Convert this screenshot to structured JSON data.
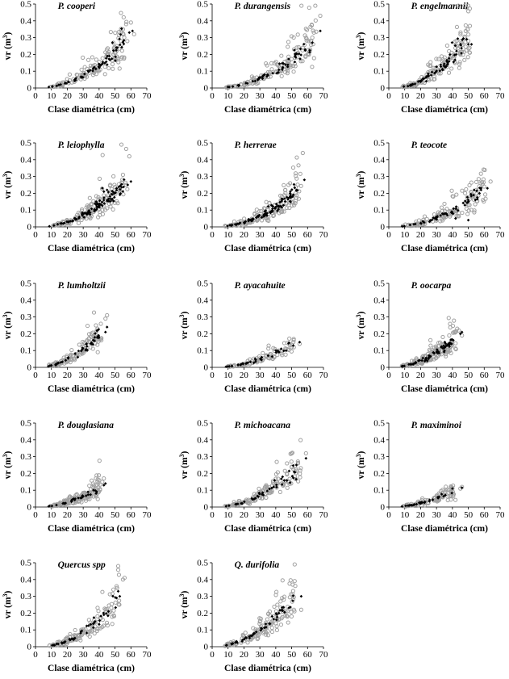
{
  "chart_data": {
    "type": "scatter",
    "xlabel": "Clase diamétrica (cm)",
    "ylabel": "vr (m3)",
    "ylabel_base": "vr (m",
    "ylabel_sup": "3",
    "ylabel_end": ")",
    "xlim": [
      0,
      70
    ],
    "ylim": [
      0,
      0.5
    ],
    "x_ticks": [
      0,
      10,
      20,
      30,
      40,
      50,
      60,
      70
    ],
    "y_ticks": [
      0,
      0.1,
      0.2,
      0.3,
      0.4,
      0.5
    ],
    "x_tick_labels": [
      "0",
      "10",
      "20",
      "30",
      "40",
      "50",
      "60",
      "70"
    ],
    "y_tick_labels": [
      "0",
      "0.1",
      "0.2",
      "0.3",
      "0.4",
      "0.5"
    ],
    "series_styles": {
      "observed": {
        "color": "#a0a0a0",
        "marker": "open-circle"
      },
      "predicted": {
        "color": "#000000",
        "marker": "diamond"
      }
    },
    "panels": [
      {
        "title": "P. cooperi",
        "xmin": 8,
        "xmax": 62,
        "a": 5.5e-05,
        "b": 2.12,
        "noise": 0.3,
        "n_obs": 130,
        "n_pred": 60,
        "extra_obs": [
          [
            60,
            0.39
          ],
          [
            57,
            0.38
          ],
          [
            55,
            0.35
          ],
          [
            62,
            0.32
          ]
        ],
        "extra_pred": [
          [
            61,
            0.34
          ],
          [
            59,
            0.33
          ]
        ]
      },
      {
        "title": "P. durangensis",
        "xmin": 8,
        "xmax": 70,
        "a": 3.8e-05,
        "b": 2.15,
        "noise": 0.3,
        "n_obs": 150,
        "n_pred": 55,
        "extra_obs": [
          [
            68,
            0.43
          ],
          [
            63,
            0.3
          ],
          [
            62,
            0.28
          ],
          [
            59,
            0.3
          ]
        ],
        "extra_pred": [
          [
            68,
            0.34
          ],
          [
            63,
            0.27
          ]
        ]
      },
      {
        "title": "P. engelmannii",
        "xmin": 8,
        "xmax": 55,
        "a": 6e-05,
        "b": 2.18,
        "noise": 0.3,
        "n_obs": 140,
        "n_pred": 60,
        "extra_obs": [
          [
            51,
            0.37
          ],
          [
            48,
            0.3
          ],
          [
            50,
            0.28
          ]
        ],
        "extra_pred": [
          [
            52,
            0.26
          ],
          [
            49,
            0.29
          ],
          [
            50,
            0.26
          ]
        ]
      },
      {
        "title": "P. leiophylla",
        "xmin": 8,
        "xmax": 62,
        "a": 4.5e-05,
        "b": 2.15,
        "noise": 0.35,
        "n_obs": 130,
        "n_pred": 90,
        "extra_obs": [
          [
            59,
            0.42
          ],
          [
            55,
            0.31
          ],
          [
            57,
            0.25
          ],
          [
            48,
            0.2
          ],
          [
            47,
            0.25
          ]
        ],
        "extra_pred": [
          [
            60,
            0.27
          ],
          [
            58,
            0.25
          ],
          [
            42,
            0.23
          ],
          [
            45,
            0.22
          ],
          [
            43,
            0.21
          ]
        ]
      },
      {
        "title": "P. herrerae",
        "xmin": 8,
        "xmax": 60,
        "a": 4.2e-05,
        "b": 2.15,
        "noise": 0.35,
        "n_obs": 140,
        "n_pred": 90,
        "extra_obs": [
          [
            57,
            0.44
          ],
          [
            48,
            0.25
          ],
          [
            49,
            0.26
          ],
          [
            46,
            0.22
          ]
        ],
        "extra_pred": [
          [
            58,
            0.28
          ],
          [
            49,
            0.2
          ]
        ]
      },
      {
        "title": "P. teocote",
        "xmin": 8,
        "xmax": 65,
        "a": 4.2e-05,
        "b": 2.1,
        "noise": 0.35,
        "n_obs": 130,
        "n_pred": 55,
        "extra_obs": [
          [
            64,
            0.27
          ],
          [
            60,
            0.24
          ],
          [
            55,
            0.22
          ],
          [
            48,
            0.2
          ]
        ],
        "extra_pred": [
          [
            62,
            0.23
          ],
          [
            58,
            0.22
          ],
          [
            57,
            0.2
          ],
          [
            50,
            0.04
          ],
          [
            42,
            0.05
          ]
        ]
      },
      {
        "title": "P. lumholtzii",
        "xmin": 8,
        "xmax": 46,
        "a": 9e-05,
        "b": 2.08,
        "noise": 0.3,
        "n_obs": 110,
        "n_pred": 45,
        "extra_obs": [
          [
            45,
            0.31
          ],
          [
            44,
            0.29
          ],
          [
            38,
            0.25
          ],
          [
            39,
            0.23
          ]
        ],
        "extra_pred": [
          [
            45,
            0.24
          ],
          [
            44,
            0.21
          ]
        ]
      },
      {
        "title": "P. ayacahuite",
        "xmin": 8,
        "xmax": 56,
        "a": 4.5e-05,
        "b": 2.05,
        "noise": 0.25,
        "n_obs": 80,
        "n_pred": 35,
        "extra_obs": [
          [
            55,
            0.14
          ],
          [
            50,
            0.12
          ],
          [
            42,
            0.1
          ]
        ],
        "extra_pred": [
          [
            55,
            0.15
          ],
          [
            51,
            0.13
          ]
        ]
      },
      {
        "title": "P. oocarpa",
        "xmin": 8,
        "xmax": 47,
        "a": 7e-05,
        "b": 2.1,
        "noise": 0.35,
        "n_obs": 150,
        "n_pred": 60,
        "extra_obs": [
          [
            43,
            0.23
          ],
          [
            44,
            0.22
          ],
          [
            41,
            0.21
          ],
          [
            38,
            0.19
          ],
          [
            46,
            0.19
          ]
        ],
        "extra_pred": [
          [
            46,
            0.21
          ],
          [
            45,
            0.2
          ],
          [
            33,
            0.12
          ],
          [
            35,
            0.1
          ]
        ]
      },
      {
        "title": "P. douglasiana",
        "xmin": 8,
        "xmax": 45,
        "a": 6e-05,
        "b": 2.05,
        "noise": 0.3,
        "n_obs": 150,
        "n_pred": 30,
        "extra_obs": [
          [
            38,
            0.17
          ],
          [
            40,
            0.16
          ],
          [
            43,
            0.17
          ],
          [
            42,
            0.15
          ]
        ],
        "extra_pred": [
          [
            43,
            0.13
          ],
          [
            44,
            0.14
          ]
        ]
      },
      {
        "title": "P. michoacana",
        "xmin": 8,
        "xmax": 60,
        "a": 5.5e-05,
        "b": 2.1,
        "noise": 0.3,
        "n_obs": 130,
        "n_pred": 40,
        "extra_obs": [
          [
            59,
            0.32
          ],
          [
            54,
            0.26
          ],
          [
            50,
            0.24
          ],
          [
            47,
            0.2
          ]
        ],
        "extra_pred": [
          [
            59,
            0.29
          ],
          [
            53,
            0.25
          ]
        ]
      },
      {
        "title": "P. maximinoi",
        "xmin": 8,
        "xmax": 46,
        "a": 5e-05,
        "b": 2.05,
        "noise": 0.3,
        "n_obs": 90,
        "n_pred": 30,
        "extra_obs": [
          [
            45,
            0.11
          ],
          [
            46,
            0.12
          ],
          [
            40,
            0.11
          ],
          [
            38,
            0.1
          ]
        ],
        "extra_pred": [
          [
            40,
            0.11
          ],
          [
            46,
            0.115
          ]
        ]
      },
      {
        "title": "Quercus spp",
        "xmin": 8,
        "xmax": 57,
        "a": 4e-05,
        "b": 2.25,
        "noise": 0.3,
        "n_obs": 130,
        "n_pred": 40,
        "extra_obs": [
          [
            52,
            0.48
          ],
          [
            56,
            0.41
          ],
          [
            55,
            0.4
          ],
          [
            49,
            0.34
          ],
          [
            51,
            0.36
          ]
        ],
        "extra_pred": [
          [
            52,
            0.33
          ],
          [
            53,
            0.3
          ],
          [
            51,
            0.29
          ],
          [
            43,
            0.19
          ]
        ]
      },
      {
        "title": "Q. durifolia",
        "xmin": 8,
        "xmax": 57,
        "a": 9e-05,
        "b": 2.06,
        "noise": 0.35,
        "n_obs": 140,
        "n_pred": 45,
        "extra_obs": [
          [
            44,
            0.29
          ],
          [
            43,
            0.27
          ],
          [
            45,
            0.28
          ],
          [
            41,
            0.25
          ],
          [
            56,
            0.22
          ]
        ],
        "extra_pred": [
          [
            56,
            0.3
          ],
          [
            44,
            0.22
          ],
          [
            42,
            0.2
          ]
        ]
      }
    ]
  }
}
